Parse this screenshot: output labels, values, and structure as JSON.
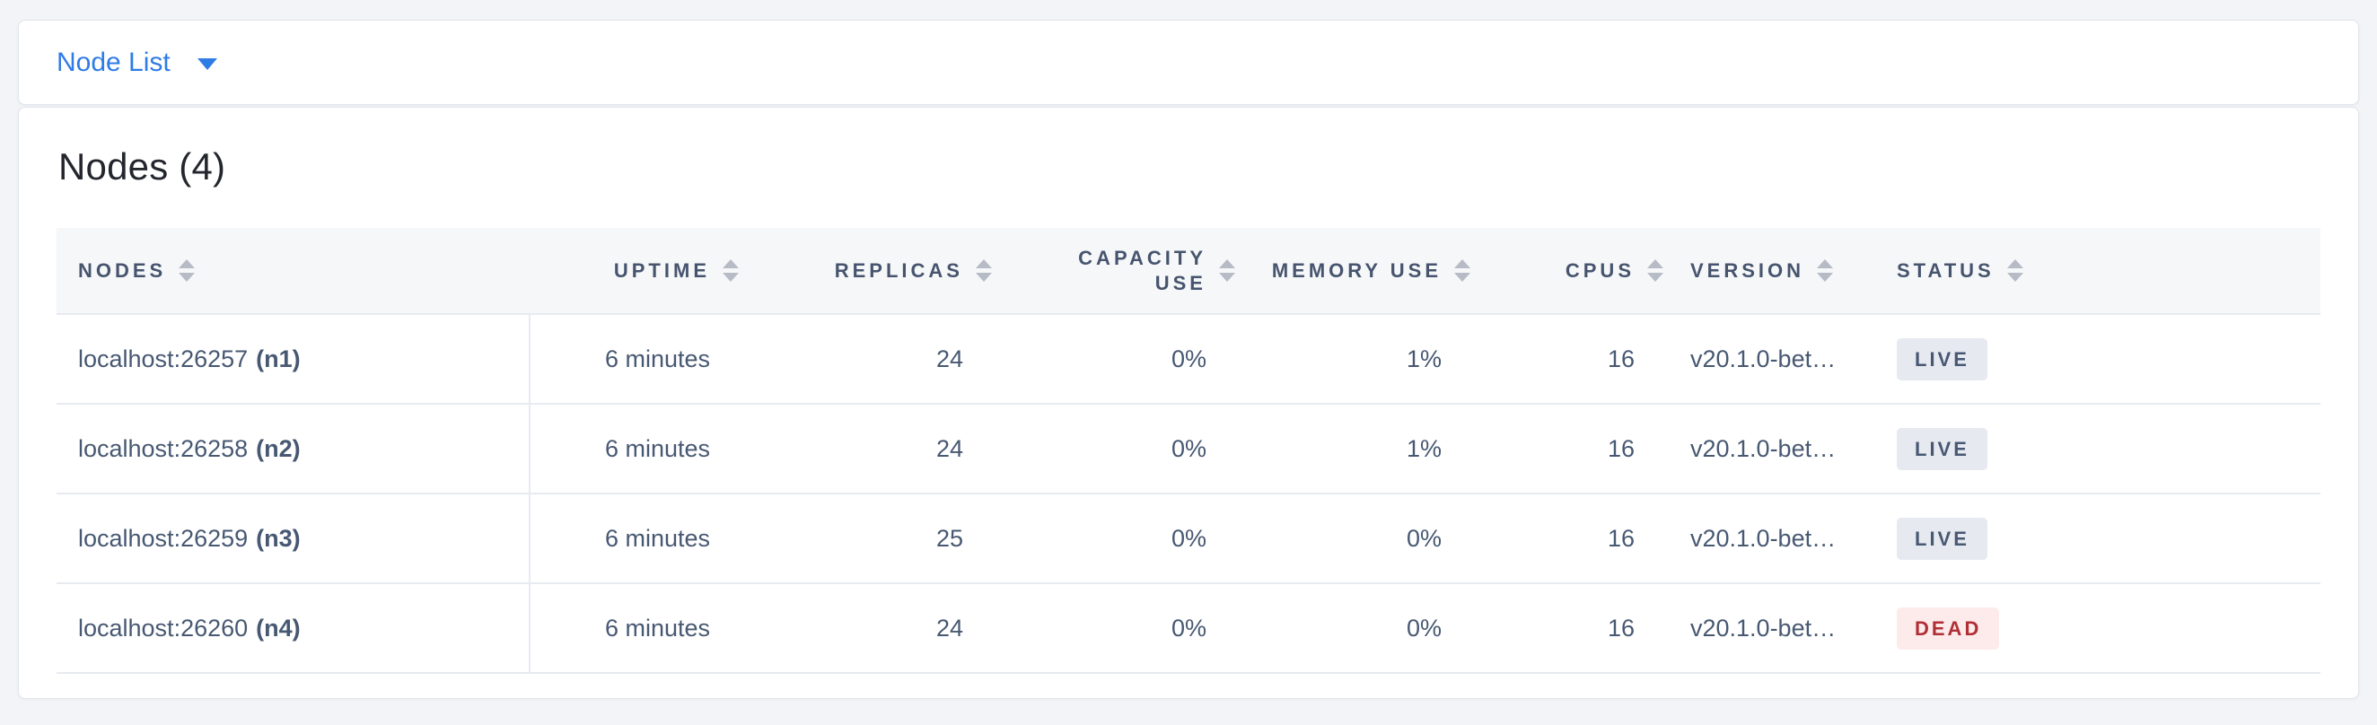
{
  "toolbar": {
    "dropdown_label": "Node List"
  },
  "main": {
    "title": "Nodes (4)",
    "table": {
      "columns": [
        {
          "label": "NODES",
          "align": "left"
        },
        {
          "label": "UPTIME",
          "align": "right"
        },
        {
          "label": "REPLICAS",
          "align": "right"
        },
        {
          "label": "CAPACITY USE",
          "align": "right"
        },
        {
          "label": "MEMORY USE",
          "align": "right"
        },
        {
          "label": "CPUS",
          "align": "right"
        },
        {
          "label": "VERSION",
          "align": "left"
        },
        {
          "label": "STATUS",
          "align": "left"
        }
      ],
      "rows": [
        {
          "address": "localhost:26257",
          "node_id": "(n1)",
          "uptime": "6 minutes",
          "replicas": "24",
          "capacity_use": "0%",
          "memory_use": "1%",
          "cpus": "16",
          "version": "v20.1.0-bet…",
          "status": "LIVE"
        },
        {
          "address": "localhost:26258",
          "node_id": "(n2)",
          "uptime": "6 minutes",
          "replicas": "24",
          "capacity_use": "0%",
          "memory_use": "1%",
          "cpus": "16",
          "version": "v20.1.0-bet…",
          "status": "LIVE"
        },
        {
          "address": "localhost:26259",
          "node_id": "(n3)",
          "uptime": "6 minutes",
          "replicas": "25",
          "capacity_use": "0%",
          "memory_use": "0%",
          "cpus": "16",
          "version": "v20.1.0-bet…",
          "status": "LIVE"
        },
        {
          "address": "localhost:26260",
          "node_id": "(n4)",
          "uptime": "6 minutes",
          "replicas": "24",
          "capacity_use": "0%",
          "memory_use": "0%",
          "cpus": "16",
          "version": "v20.1.0-bet…",
          "status": "DEAD"
        }
      ]
    }
  },
  "colors": {
    "page_background": "#f2f4f8",
    "link_blue": "#2f7ce5",
    "header_text": "#46546e",
    "body_text": "#475872",
    "live_badge_bg": "#e7e9f0",
    "live_badge_text": "#475872",
    "dead_badge_bg": "#fcebea",
    "dead_badge_text": "#b02e35"
  }
}
